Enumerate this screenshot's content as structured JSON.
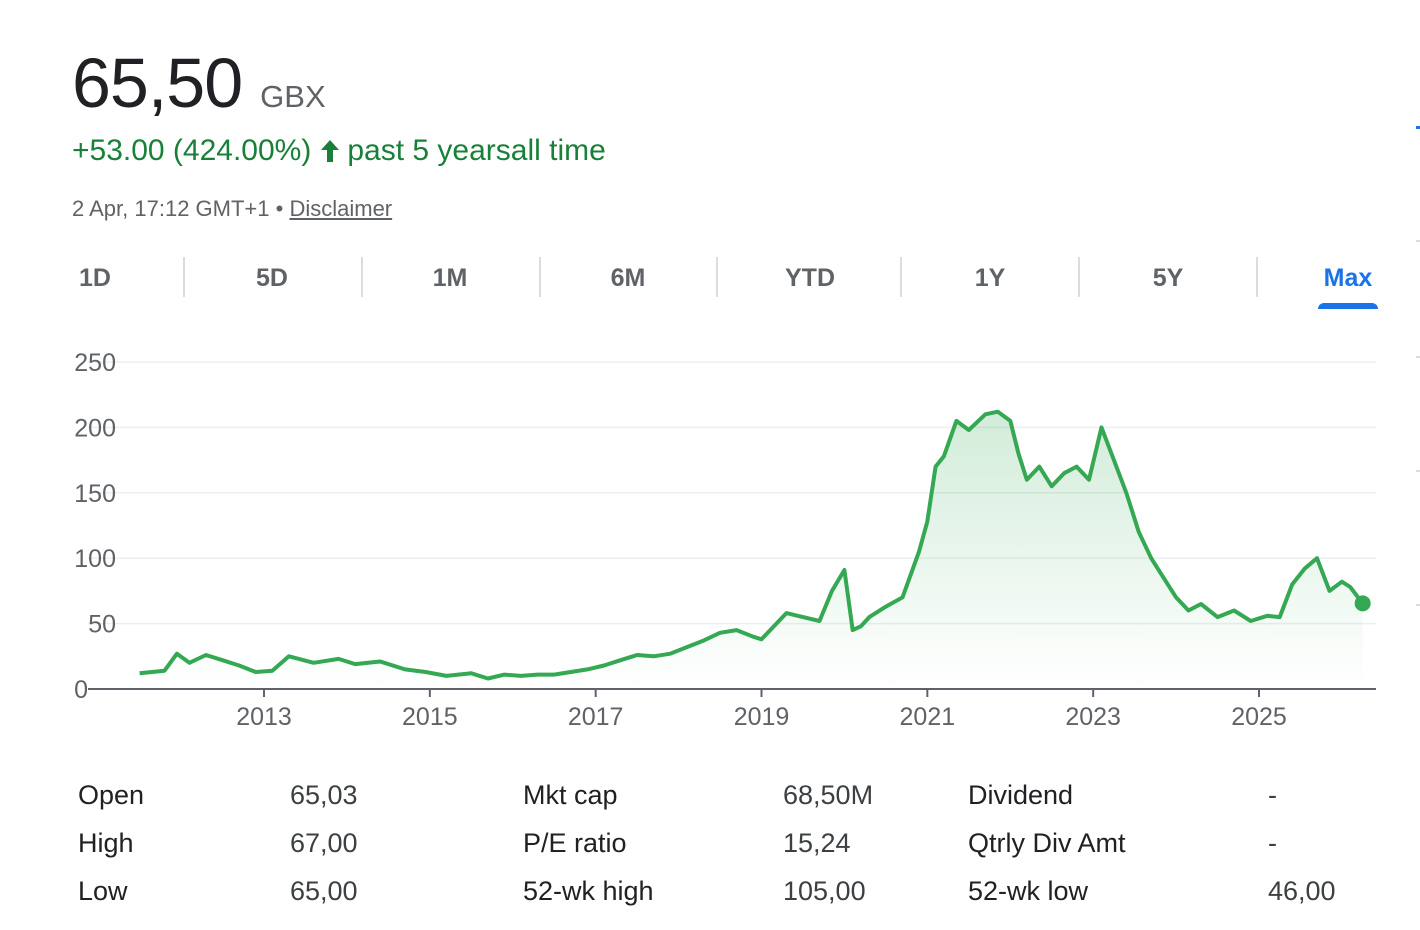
{
  "quote": {
    "price": "65,50",
    "currency": "GBX",
    "change": "+53.00 (424.00%)",
    "period_text": "past 5 yearsall time",
    "timestamp": "2 Apr, 17:12 GMT+1 •",
    "disclaimer": "Disclaimer"
  },
  "range_tabs": [
    "1D",
    "5D",
    "1M",
    "6M",
    "YTD",
    "1Y",
    "5Y",
    "Max"
  ],
  "active_tab": "Max",
  "colors": {
    "line": "#34a853",
    "accent": "#1a73e8",
    "positive": "#188038"
  },
  "chart_data": {
    "type": "area",
    "x_ticks": [
      "2013",
      "2015",
      "2017",
      "2019",
      "2021",
      "2023",
      "2025"
    ],
    "y_ticks": [
      "250",
      "200",
      "150",
      "100",
      "50",
      "0"
    ],
    "ylim": [
      0,
      250
    ],
    "grid": true,
    "series": [
      {
        "x": [
          2011.5,
          2011.8,
          2011.95,
          2012.1,
          2012.3,
          2012.5,
          2012.7,
          2012.9,
          2013.1,
          2013.3,
          2013.6,
          2013.9,
          2014.1,
          2014.4,
          2014.7,
          2014.95,
          2015.2,
          2015.5,
          2015.7,
          2015.9,
          2016.1,
          2016.3,
          2016.5,
          2016.7,
          2016.9,
          2017.1,
          2017.3,
          2017.5,
          2017.7,
          2017.9,
          2018.1,
          2018.3,
          2018.5,
          2018.7,
          2018.9,
          2019.0,
          2019.15,
          2019.3,
          2019.5,
          2019.7,
          2019.85,
          2020.0,
          2020.1,
          2020.2,
          2020.3,
          2020.5,
          2020.7,
          2020.9,
          2021.0,
          2021.1,
          2021.2,
          2021.35,
          2021.5,
          2021.7,
          2021.85,
          2022.0,
          2022.1,
          2022.2,
          2022.35,
          2022.5,
          2022.65,
          2022.8,
          2022.95,
          2023.1,
          2023.25,
          2023.4,
          2023.55,
          2023.7,
          2023.85,
          2024.0,
          2024.15,
          2024.3,
          2024.5,
          2024.7,
          2024.9,
          2025.1,
          2025.25,
          2025.4,
          2025.55,
          2025.7,
          2025.85,
          2026.0,
          2026.1,
          2026.25
        ],
        "values": [
          12,
          14,
          27,
          20,
          26,
          22,
          18,
          13,
          14,
          25,
          20,
          23,
          19,
          21,
          15,
          13,
          10,
          12,
          8,
          11,
          10,
          11,
          11,
          13,
          15,
          18,
          22,
          26,
          25,
          27,
          32,
          37,
          43,
          45,
          40,
          38,
          48,
          58,
          55,
          52,
          75,
          91,
          45,
          48,
          55,
          63,
          70,
          105,
          128,
          170,
          178,
          205,
          198,
          210,
          212,
          205,
          180,
          160,
          170,
          155,
          165,
          170,
          160,
          200,
          175,
          150,
          120,
          100,
          85,
          70,
          60,
          65,
          55,
          60,
          52,
          56,
          55,
          80,
          92,
          100,
          75,
          82,
          78,
          65.5
        ]
      }
    ]
  },
  "stats": [
    {
      "label": "Open",
      "value": "65,03"
    },
    {
      "label": "High",
      "value": "67,00"
    },
    {
      "label": "Low",
      "value": "65,00"
    },
    {
      "label": "Mkt cap",
      "value": "68,50M"
    },
    {
      "label": "P/E ratio",
      "value": "15,24"
    },
    {
      "label": "52-wk high",
      "value": "105,00"
    },
    {
      "label": "Dividend",
      "value": "-"
    },
    {
      "label": "Qtrly Div Amt",
      "value": "-"
    },
    {
      "label": "52-wk low",
      "value": "46,00"
    }
  ]
}
